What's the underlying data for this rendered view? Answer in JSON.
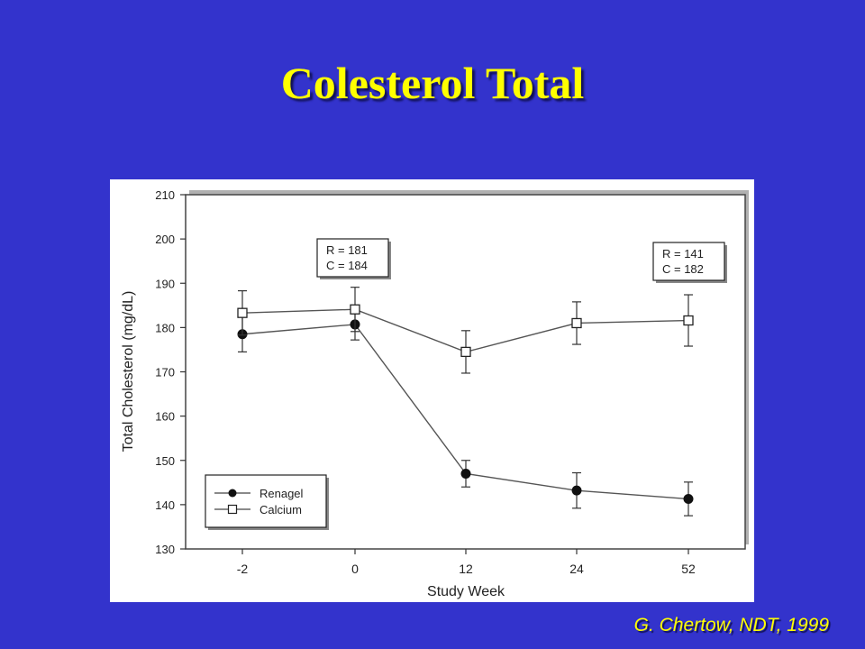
{
  "slide": {
    "title": "Colesterol Total",
    "citation": "G. Chertow, NDT, 1999"
  },
  "chart_data": {
    "type": "line",
    "title": "",
    "xlabel": "Study Week",
    "ylabel": "Total Cholesterol (mg/dL)",
    "categories": [
      "-2",
      "0",
      "12",
      "24",
      "52"
    ],
    "ylim": [
      130,
      210
    ],
    "yticks": [
      130,
      140,
      150,
      160,
      170,
      180,
      190,
      200,
      210
    ],
    "grid": false,
    "legend_position": "bottom-left",
    "series": [
      {
        "name": "Renagel",
        "marker": "filled-circle",
        "values": [
          178.5,
          180.7,
          147.0,
          143.2,
          141.3
        ],
        "error": [
          4.0,
          3.5,
          3.0,
          4.0,
          3.8
        ]
      },
      {
        "name": "Calcium",
        "marker": "open-square",
        "values": [
          183.3,
          184.1,
          174.5,
          181.0,
          181.6
        ],
        "error": [
          5.0,
          5.0,
          4.8,
          4.8,
          5.8
        ]
      }
    ],
    "annotations": [
      {
        "lines": [
          "R = 181",
          "C = 184"
        ],
        "at_category": "-2/0",
        "placement": "upper"
      },
      {
        "lines": [
          "R = 141",
          "C = 182"
        ],
        "at_category": "52",
        "placement": "upper"
      }
    ]
  }
}
